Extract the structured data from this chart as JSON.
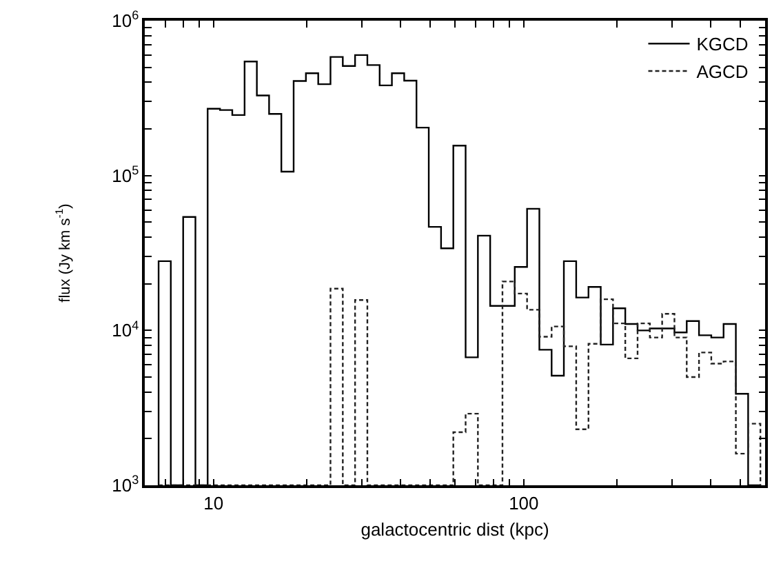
{
  "chart_data": {
    "type": "histogram",
    "xlabel": "galactocentric dist (kpc)",
    "ylabel": "flux (Jy km s$^{-1}$)",
    "log": "xy",
    "legend": "top right",
    "bins": [
      6.65,
      7.28,
      7.98,
      8.74,
      9.57,
      10.49,
      11.49,
      12.59,
      13.79,
      15.1,
      16.54,
      18.12,
      19.85,
      21.75,
      23.82,
      26.1,
      28.59,
      31.32,
      34.31,
      37.58,
      41.17,
      45.1,
      49.41,
      54.13,
      59.29,
      64.95,
      71.15,
      77.95,
      85.39,
      93.54,
      102.5,
      112.3,
      123.0,
      134.7,
      147.6,
      161.7,
      177.1,
      194.0,
      212.5,
      232.8,
      255.0,
      279.4,
      306.1,
      335.3,
      367.3,
      402.4,
      440.8,
      482.9,
      529.0,
      579.4
    ],
    "series": [
      {
        "name": "KGCD",
        "color": "#000000",
        "line_style": "solid",
        "values": [
          28000,
          null,
          54000,
          null,
          270000,
          265000,
          246000,
          545000,
          329000,
          250000,
          106000,
          408000,
          458000,
          389000,
          583000,
          510000,
          600000,
          517000,
          382000,
          458000,
          410000,
          204000,
          46600,
          33900,
          156000,
          6700,
          40900,
          14400,
          14400,
          25700,
          61000,
          7500,
          5100,
          28000,
          16300,
          19100,
          8100,
          13900,
          11000,
          10000,
          10300,
          10300,
          9700,
          11500,
          9300,
          9000,
          11000,
          3900,
          null
        ]
      },
      {
        "name": "AGCD",
        "color": "#222222",
        "line_style": "dashed",
        "values": [
          null,
          null,
          null,
          null,
          null,
          null,
          null,
          null,
          null,
          null,
          null,
          null,
          null,
          null,
          18600,
          null,
          15700,
          null,
          null,
          null,
          null,
          null,
          null,
          null,
          2200,
          2900,
          null,
          null,
          20700,
          17300,
          13600,
          9100,
          10600,
          7900,
          2300,
          8200,
          15900,
          11100,
          6600,
          11100,
          9000,
          12800,
          9000,
          5000,
          7200,
          6100,
          6300,
          1600,
          2500
        ]
      }
    ],
    "xlim": [
      6,
      600
    ],
    "ylim": [
      1000,
      1000000
    ],
    "xticks": [
      {
        "value": 7,
        "label": null
      },
      {
        "value": 8,
        "label": null
      },
      {
        "value": 9,
        "label": null
      },
      10,
      {
        "value": 20,
        "label": null
      },
      {
        "value": 30,
        "label": null
      },
      {
        "value": 40,
        "label": null
      },
      {
        "value": 50,
        "label": null
      },
      {
        "value": 60,
        "label": null
      },
      {
        "value": 70,
        "label": null
      },
      {
        "value": 80,
        "label": null
      },
      {
        "value": 90,
        "label": null
      },
      100,
      {
        "value": 200,
        "label": null
      },
      {
        "value": 300,
        "label": null
      },
      {
        "value": 400,
        "label": null
      },
      {
        "value": 500,
        "label": null
      }
    ],
    "yticks": [
      {
        "value": 1000,
        "label": "10$^{3}$"
      },
      {
        "value": 2000,
        "label": null
      },
      {
        "value": 3000,
        "label": null
      },
      {
        "value": 4000,
        "label": null
      },
      {
        "value": 5000,
        "label": null
      },
      {
        "value": 6000,
        "label": null
      },
      {
        "value": 7000,
        "label": null
      },
      {
        "value": 8000,
        "label": null
      },
      {
        "value": 9000,
        "label": null
      },
      {
        "value": 10000,
        "label": "10$^{4}$"
      },
      {
        "value": 20000,
        "label": null
      },
      {
        "value": 30000,
        "label": null
      },
      {
        "value": 40000,
        "label": null
      },
      {
        "value": 50000,
        "label": null
      },
      {
        "value": 60000,
        "label": null
      },
      {
        "value": 70000,
        "label": null
      },
      {
        "value": 80000,
        "label": null
      },
      {
        "value": 90000,
        "label": null
      },
      {
        "value": 100000,
        "label": "10$^{5}$"
      },
      {
        "value": 200000,
        "label": null
      },
      {
        "value": 300000,
        "label": null
      },
      {
        "value": 400000,
        "label": null
      },
      {
        "value": 500000,
        "label": null
      },
      {
        "value": 600000,
        "label": null
      },
      {
        "value": 700000,
        "label": null
      },
      {
        "value": 800000,
        "label": null
      },
      {
        "value": 900000,
        "label": null
      },
      {
        "value": 1000000,
        "label": "10$^{6}$"
      }
    ]
  }
}
